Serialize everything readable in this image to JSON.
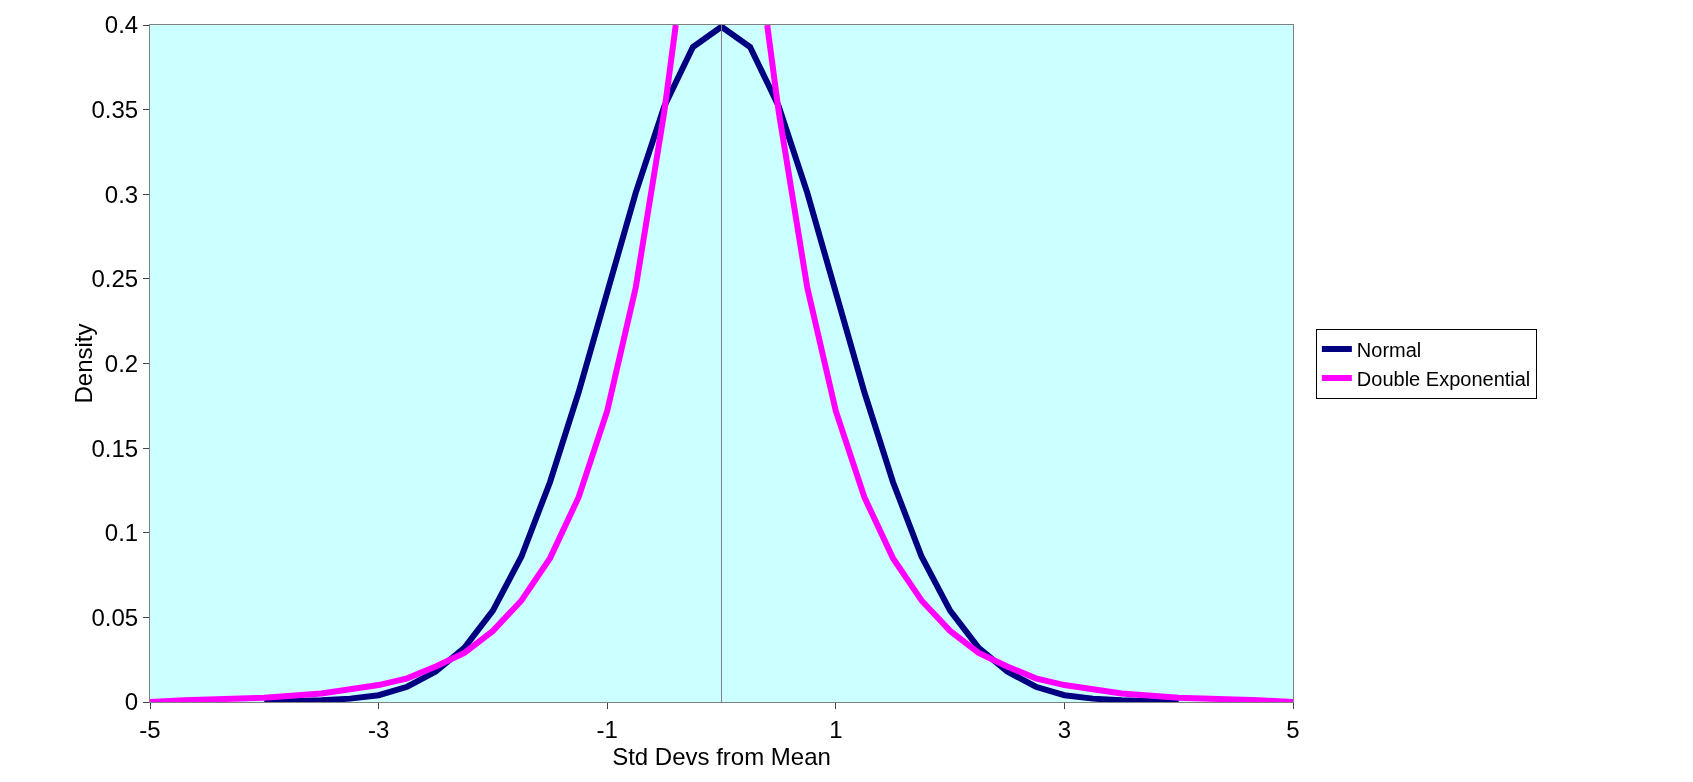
{
  "chart_data": {
    "type": "line",
    "xlabel": "Std Devs from Mean",
    "ylabel": "Density",
    "xlim": [
      -5,
      5
    ],
    "xticks": [
      -5,
      -3,
      -1,
      1,
      3,
      5
    ],
    "ylim": [
      0,
      0.4
    ],
    "yticks": [
      0,
      0.05,
      0.1,
      0.15,
      0.2,
      0.25,
      0.3,
      0.35,
      0.4
    ],
    "grid": false,
    "legend": "right",
    "marker": "none",
    "line_style": "solid",
    "ref_lines": [
      {
        "axis": "x",
        "value": 0,
        "color": "#808080"
      }
    ],
    "series": [
      {
        "name": "Normal",
        "color": "#000080",
        "x": [
          -4,
          -3.5,
          -3.25,
          -3,
          -2.75,
          -2.5,
          -2.25,
          -2,
          -1.75,
          -1.5,
          -1.25,
          -1,
          -0.75,
          -0.5,
          -0.25,
          0,
          0.25,
          0.5,
          0.75,
          1,
          1.25,
          1.5,
          1.75,
          2,
          2.25,
          2.5,
          2.75,
          3,
          3.25,
          3.5,
          4
        ],
        "values": [
          0,
          0.001,
          0.002,
          0.004,
          0.009,
          0.018,
          0.032,
          0.054,
          0.086,
          0.13,
          0.183,
          0.242,
          0.301,
          0.352,
          0.387,
          0.399,
          0.387,
          0.352,
          0.301,
          0.242,
          0.183,
          0.13,
          0.086,
          0.054,
          0.032,
          0.018,
          0.009,
          0.004,
          0.002,
          0.001,
          0
        ]
      },
      {
        "name": "Double Exponential",
        "color": "#ff00ff",
        "x": [
          -5,
          -4.7,
          -4,
          -3.5,
          -3,
          -2.75,
          -2.5,
          -2.25,
          -2,
          -1.75,
          -1.5,
          -1.25,
          -1,
          -0.75,
          -0.5,
          -0.4,
          0,
          0.4,
          0.5,
          0.75,
          1,
          1.25,
          1.5,
          1.75,
          2,
          2.25,
          2.5,
          2.75,
          3,
          3.5,
          4,
          4.7,
          5
        ],
        "values": [
          0,
          0.001,
          0.0025,
          0.005,
          0.01,
          0.014,
          0.021,
          0.029,
          0.042,
          0.06,
          0.085,
          0.121,
          0.172,
          0.245,
          0.349,
          0.4,
          null,
          0.4,
          0.349,
          0.245,
          0.172,
          0.121,
          0.085,
          0.06,
          0.042,
          0.029,
          0.021,
          0.014,
          0.01,
          0.005,
          0.0025,
          0.001,
          0
        ]
      }
    ]
  }
}
